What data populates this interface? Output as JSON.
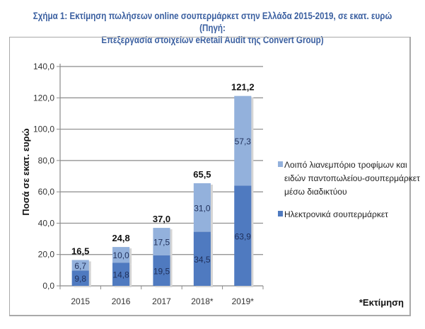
{
  "chart_data": {
    "type": "bar",
    "stacked": true,
    "title_lines": [
      "Σχήμα 1: Εκτίμηση πωλήσεων online σουπερμάρκετ στην Ελλάδα 2015-2019, σε εκατ. ευρώ (Πηγή:",
      "Επεξεργασία στοιχείων eRetail Audit της Convert Group)"
    ],
    "categories": [
      "2015",
      "2016",
      "2017",
      "2018*",
      "2019*"
    ],
    "series": [
      {
        "name": "Ηλεκτρονικά σουπερμάρκετ",
        "values": [
          9.8,
          14.8,
          19.5,
          34.5,
          63.9
        ],
        "labels": [
          "9,8",
          "14,8",
          "19,5",
          "34,5",
          "63,9"
        ],
        "color": "#4f7ac0"
      },
      {
        "name": "Λοιπό λιανεμπόριο τροφίμων και ειδών παντοπωλείου-σουπερμάρκετ μέσω διαδικτύου",
        "values": [
          6.7,
          10.0,
          17.5,
          31.0,
          57.3
        ],
        "labels": [
          "6,7",
          "10,0",
          "17,5",
          "31,0",
          "57,3"
        ],
        "color": "#93b1dc"
      }
    ],
    "totals": [
      16.5,
      24.8,
      37.0,
      65.5,
      121.2
    ],
    "total_labels": [
      "16,5",
      "24,8",
      "37,0",
      "65,5",
      "121,2"
    ],
    "ylabel": "Ποσά σε εκατ. ευρώ",
    "xlabel": "",
    "ylim": [
      0,
      140
    ],
    "yticks": [
      0,
      20,
      40,
      60,
      80,
      100,
      120,
      140
    ],
    "ytick_labels": [
      "0,0",
      "20,0",
      "40,0",
      "60,0",
      "80,0",
      "100,0",
      "120,0",
      "140,0"
    ],
    "grid": true,
    "legend": {
      "placement": "right",
      "entries": [
        {
          "lines": [
            "Λοιπό λιανεμπόριο τροφίμων και",
            "ειδών παντοπωλείου-σουπερμάρκετ",
            "μέσω διαδικτύου"
          ],
          "color": "#93b1dc"
        },
        {
          "lines": [
            "Ηλεκτρονικά σουπερμάρκετ"
          ],
          "color": "#4f7ac0"
        }
      ]
    },
    "footnote": "*Εκτίμηση"
  }
}
